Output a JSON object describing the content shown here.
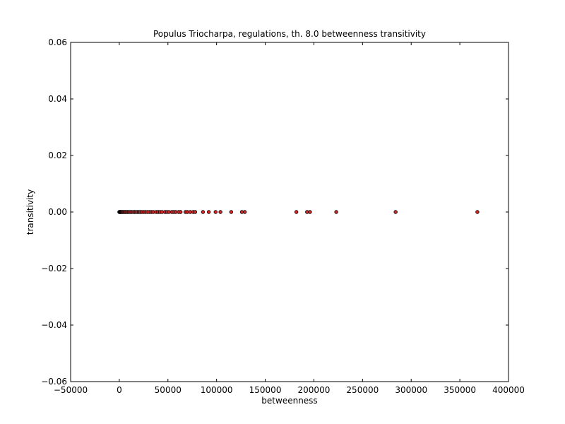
{
  "chart_data": {
    "type": "scatter",
    "title": "Populus Triocharpa, regulations, th. 8.0 betweenness transitivity",
    "xlabel": "betweenness",
    "ylabel": "transitivity",
    "xlim": [
      -50000,
      400000
    ],
    "ylim": [
      -0.06,
      0.06
    ],
    "xticks": [
      -50000,
      0,
      50000,
      100000,
      150000,
      200000,
      250000,
      300000,
      350000,
      400000
    ],
    "xtick_labels": [
      "−50000",
      "0",
      "50000",
      "100000",
      "150000",
      "200000",
      "250000",
      "300000",
      "350000",
      "400000"
    ],
    "yticks": [
      -0.06,
      -0.04,
      -0.02,
      0.0,
      0.02,
      0.04,
      0.06
    ],
    "ytick_labels": [
      "−0.06",
      "−0.04",
      "−0.02",
      "0.00",
      "0.02",
      "0.04",
      "0.06"
    ],
    "grid": false,
    "marker_color": "#d62728",
    "marker_edge_color": "#000000",
    "points": [
      {
        "x": 0,
        "y": 0
      },
      {
        "x": 200,
        "y": 0
      },
      {
        "x": 500,
        "y": 0
      },
      {
        "x": 900,
        "y": 0
      },
      {
        "x": 1300,
        "y": 0
      },
      {
        "x": 1800,
        "y": 0
      },
      {
        "x": 2400,
        "y": 0
      },
      {
        "x": 3000,
        "y": 0
      },
      {
        "x": 3800,
        "y": 0
      },
      {
        "x": 4600,
        "y": 0
      },
      {
        "x": 5500,
        "y": 0
      },
      {
        "x": 6500,
        "y": 0
      },
      {
        "x": 7500,
        "y": 0
      },
      {
        "x": 8600,
        "y": 0
      },
      {
        "x": 9800,
        "y": 0
      },
      {
        "x": 11000,
        "y": 0
      },
      {
        "x": 12500,
        "y": 0
      },
      {
        "x": 14000,
        "y": 0
      },
      {
        "x": 15500,
        "y": 0
      },
      {
        "x": 17000,
        "y": 0
      },
      {
        "x": 18500,
        "y": 0
      },
      {
        "x": 20000,
        "y": 0
      },
      {
        "x": 21500,
        "y": 0
      },
      {
        "x": 23000,
        "y": 0
      },
      {
        "x": 25000,
        "y": 0
      },
      {
        "x": 27000,
        "y": 0
      },
      {
        "x": 29000,
        "y": 0
      },
      {
        "x": 31000,
        "y": 0
      },
      {
        "x": 33000,
        "y": 0
      },
      {
        "x": 35000,
        "y": 0
      },
      {
        "x": 38000,
        "y": 0
      },
      {
        "x": 40000,
        "y": 0
      },
      {
        "x": 42000,
        "y": 0
      },
      {
        "x": 44000,
        "y": 0
      },
      {
        "x": 47000,
        "y": 0
      },
      {
        "x": 49000,
        "y": 0
      },
      {
        "x": 51000,
        "y": 0
      },
      {
        "x": 54000,
        "y": 0
      },
      {
        "x": 56000,
        "y": 0
      },
      {
        "x": 58000,
        "y": 0
      },
      {
        "x": 61000,
        "y": 0
      },
      {
        "x": 63000,
        "y": 0
      },
      {
        "x": 68000,
        "y": 0
      },
      {
        "x": 70000,
        "y": 0
      },
      {
        "x": 73000,
        "y": 0
      },
      {
        "x": 76000,
        "y": 0
      },
      {
        "x": 78000,
        "y": 0
      },
      {
        "x": 86000,
        "y": 0
      },
      {
        "x": 92000,
        "y": 0
      },
      {
        "x": 99000,
        "y": 0
      },
      {
        "x": 104000,
        "y": 0
      },
      {
        "x": 115000,
        "y": 0
      },
      {
        "x": 126000,
        "y": 0
      },
      {
        "x": 129000,
        "y": 0
      },
      {
        "x": 182000,
        "y": 0
      },
      {
        "x": 193000,
        "y": 0
      },
      {
        "x": 196000,
        "y": 0
      },
      {
        "x": 223000,
        "y": 0
      },
      {
        "x": 284000,
        "y": 0
      },
      {
        "x": 368000,
        "y": 0
      }
    ]
  }
}
